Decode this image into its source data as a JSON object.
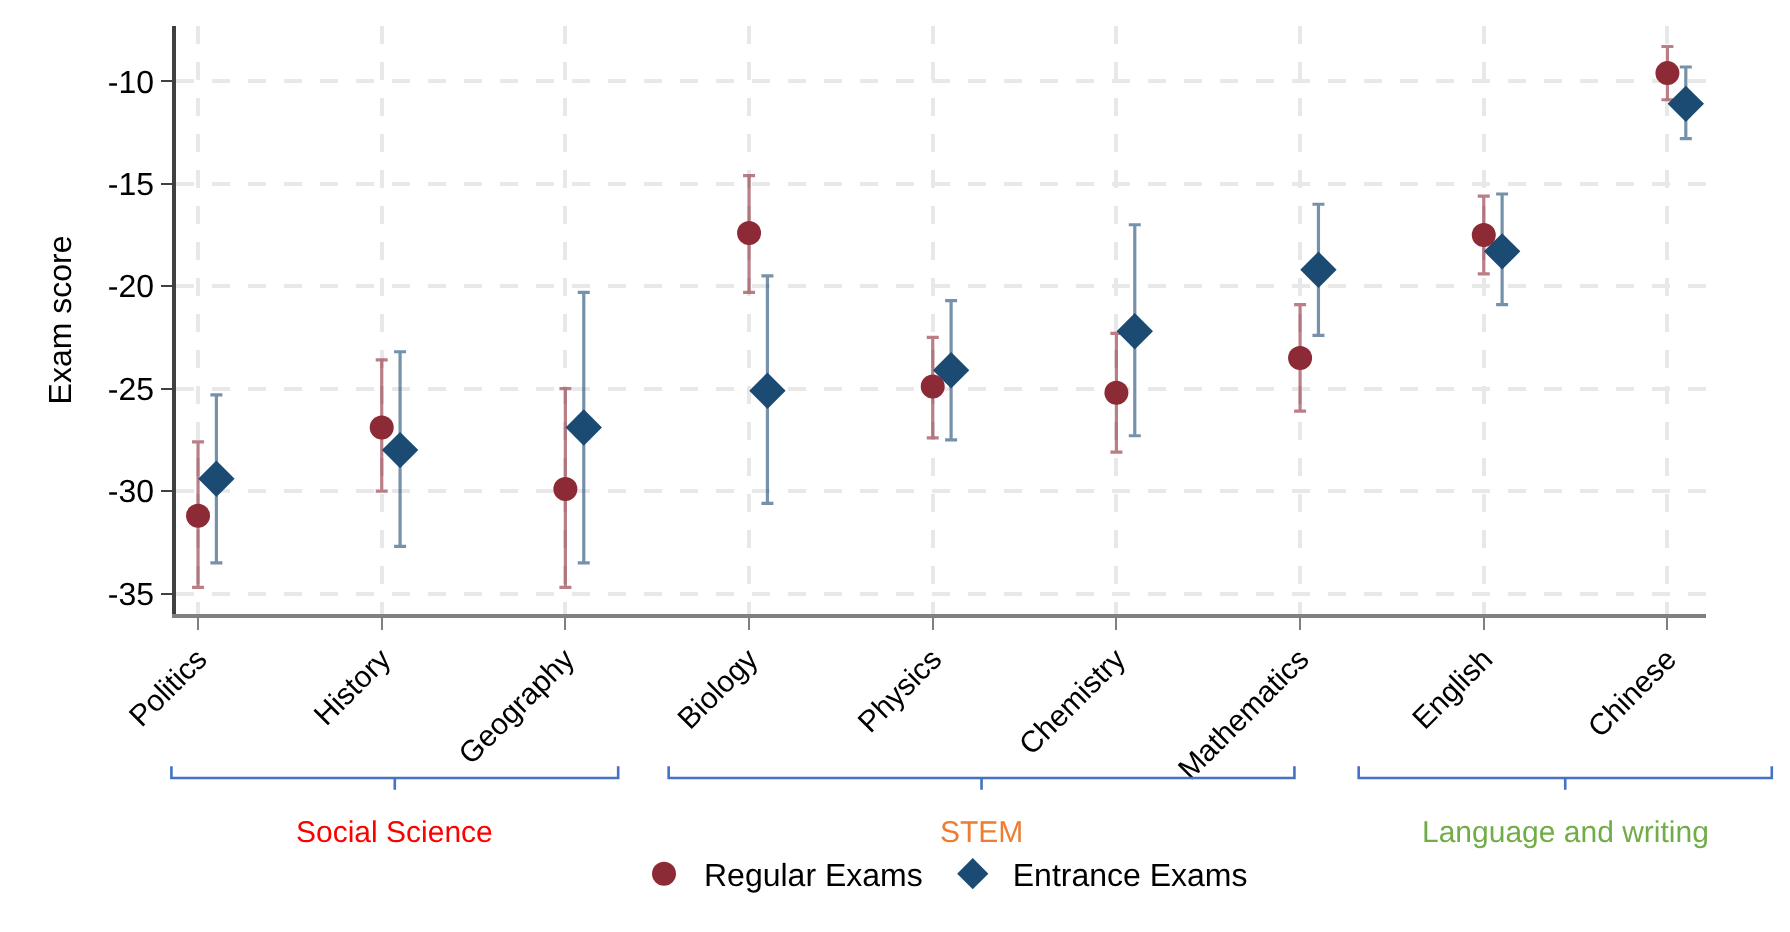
{
  "chart_data": {
    "type": "scatter",
    "ylabel": "Exam score",
    "categories": [
      "Politics",
      "History",
      "Geography",
      "Biology",
      "Physics",
      "Chemistry",
      "Mathematics",
      "English",
      "Chinese"
    ],
    "series": [
      {
        "name": "Regular Exams",
        "color": "#8c2a35",
        "marker": "circle",
        "values": [
          -31.2,
          -26.9,
          -29.9,
          -17.4,
          -24.9,
          -25.2,
          -23.5,
          -17.5,
          -9.6
        ],
        "errors": [
          [
            -34.7,
            -27.6
          ],
          [
            -30.0,
            -23.6
          ],
          [
            -34.7,
            -25.0
          ],
          [
            -20.3,
            -14.6
          ],
          [
            -27.4,
            -22.5
          ],
          [
            -28.1,
            -22.3
          ],
          [
            -26.1,
            -20.9
          ],
          [
            -19.4,
            -15.6
          ],
          [
            -10.9,
            -8.3
          ]
        ]
      },
      {
        "name": "Entrance Exams",
        "color": "#1b4a72",
        "marker": "diamond",
        "values": [
          -29.4,
          -28.0,
          -26.9,
          -25.1,
          -24.1,
          -22.2,
          -19.2,
          -18.3,
          -11.1
        ],
        "errors": [
          [
            -33.5,
            -25.3
          ],
          [
            -32.7,
            -23.2
          ],
          [
            -33.5,
            -20.3
          ],
          [
            -30.6,
            -19.5
          ],
          [
            -27.5,
            -20.7
          ],
          [
            -27.3,
            -17.0
          ],
          [
            -22.4,
            -16.0
          ],
          [
            -20.9,
            -15.5
          ],
          [
            -12.8,
            -9.3
          ]
        ]
      }
    ],
    "ylim": [
      -36,
      -7.3
    ],
    "yticks": [
      -10,
      -15,
      -20,
      -25,
      -30,
      -35
    ],
    "grid": true,
    "legend": "bottom",
    "annotations": [
      "Social Science",
      "STEM",
      "Language and writing"
    ]
  }
}
